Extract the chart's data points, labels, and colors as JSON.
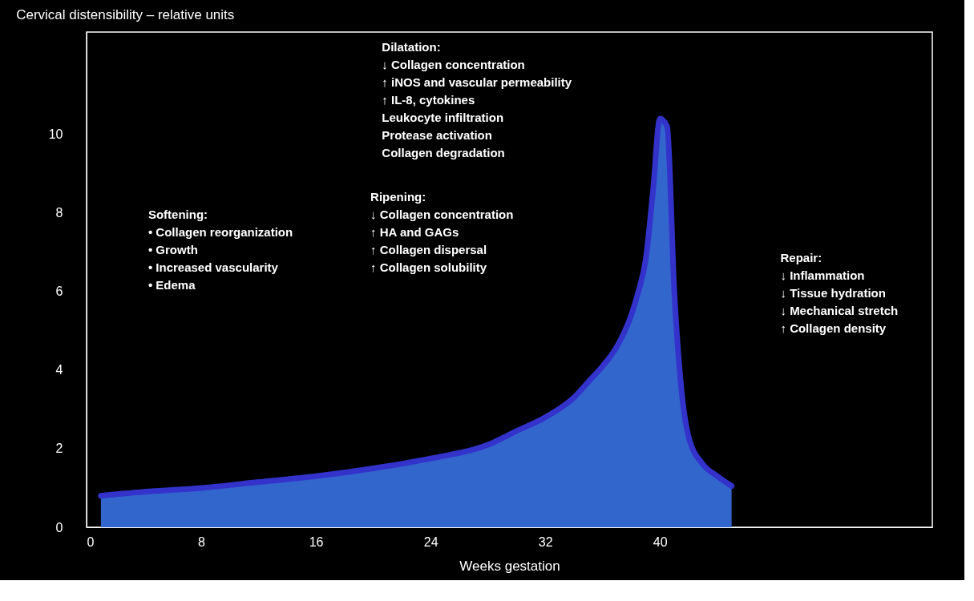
{
  "chart_data": {
    "type": "area",
    "title": "Cervical distensibility – relative units",
    "xlabel": "Weeks gestation",
    "x": [
      1,
      4,
      8,
      12,
      16,
      20,
      24,
      28,
      30,
      32,
      34,
      35,
      36,
      37,
      38,
      38.5,
      39,
      39.5,
      40,
      40.5,
      41,
      41.5,
      42,
      43,
      44,
      45
    ],
    "series": [
      {
        "color": "#3366cc",
        "values": [
          0.8,
          0.9,
          1.0,
          1.15,
          1.3,
          1.5,
          1.75,
          2.1,
          2.45,
          2.8,
          3.3,
          3.7,
          4.1,
          4.6,
          5.4,
          6.0,
          6.8,
          8.5,
          10.4,
          10.2,
          6.0,
          3.5,
          2.3,
          1.6,
          1.3,
          1.05
        ]
      }
    ],
    "xlim": [
      0,
      59
    ],
    "ylim": [
      0,
      12.6
    ],
    "xticks": [
      0,
      8,
      16,
      24,
      32,
      40
    ],
    "yticks": [
      0,
      2,
      4,
      6,
      8,
      10
    ],
    "grid": false,
    "annotations": [
      "Softening:\n• Collagen reorganization\n• Growth\n• Increased vascularity\n• Edema",
      "Ripening:\n↓ Collagen concentration\n↑ HA and GAGs\n↑ Collagen dispersal\n↑ Collagen solubility",
      "Dilatation:\n↓ Collagen concentration\n↑ iNOS and vascular permeability\n↑ IL-8, cytokines\n   Leukocyte infiltration\n   Protease activation\n   Collagen degradation",
      "Repair:\n↓ Inflammation\n↓ Tissue hydration\n↓ Mechanical stretch\n↑ Collagen density"
    ]
  }
}
